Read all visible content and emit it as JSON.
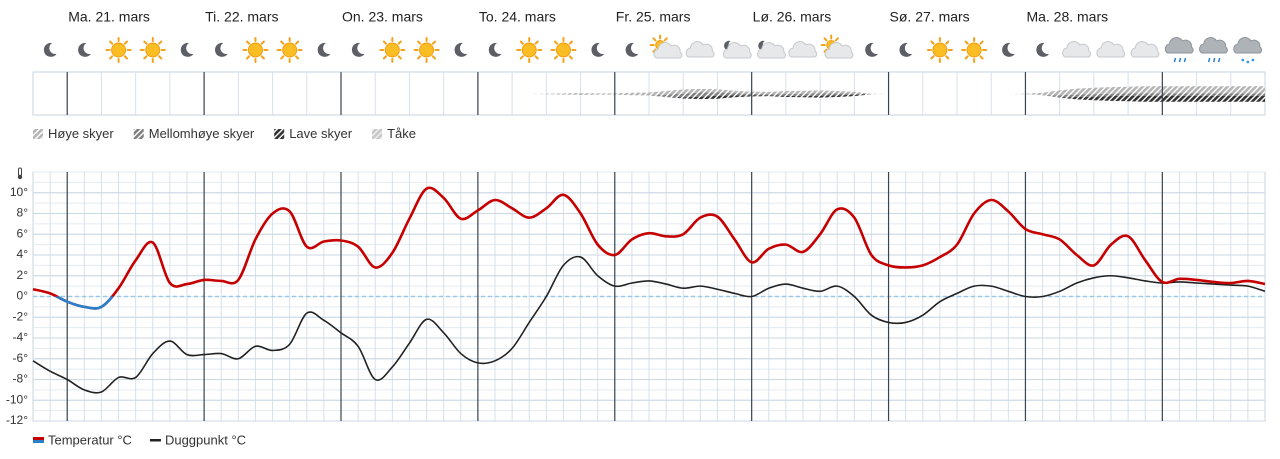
{
  "chart_data": [
    {
      "type": "area",
      "categories": [
        null,
        null,
        "Ma. 21. mars",
        null,
        null,
        null,
        null,
        null,
        null,
        null,
        "Ti. 22. mars",
        null,
        null,
        null,
        null,
        null,
        null,
        null,
        "On. 23. mars",
        null,
        null,
        null,
        null,
        null,
        null,
        null,
        "To. 24. mars",
        null,
        null,
        null,
        null,
        null,
        null,
        null,
        "Fr. 25. mars",
        null,
        null,
        null,
        null,
        null,
        null,
        null,
        "Lø. 26. mars",
        null,
        null,
        null,
        null,
        null,
        null,
        null,
        "Sø. 27. mars",
        null,
        null,
        null,
        null,
        null,
        null,
        null,
        "Ma. 28. mars",
        null,
        null,
        null,
        null,
        null,
        null,
        null,
        null,
        null,
        null,
        null,
        null,
        null,
        null
      ],
      "series": [
        {
          "name": "Høye skyer",
          "color": "#b4b4b4",
          "values": [
            0,
            0,
            0,
            0,
            0,
            0,
            0,
            0,
            0,
            0,
            0,
            0,
            0,
            0,
            0,
            0,
            0,
            0,
            0,
            0,
            0,
            0,
            0,
            0,
            0,
            0,
            0,
            0,
            0,
            0,
            5,
            10,
            15,
            10,
            10,
            20,
            25,
            30,
            35,
            30,
            25,
            20,
            20,
            20,
            25,
            25,
            25,
            20,
            15,
            5,
            0,
            0,
            0,
            0,
            0,
            0,
            0,
            0,
            5,
            20,
            40,
            50,
            55,
            55,
            55,
            60,
            60,
            60,
            60,
            60,
            60,
            60,
            60
          ]
        },
        {
          "name": "Mellomhøye skyer",
          "color": "#808080",
          "values": [
            0,
            0,
            0,
            0,
            0,
            0,
            0,
            0,
            0,
            0,
            0,
            0,
            0,
            0,
            0,
            0,
            0,
            0,
            0,
            0,
            0,
            0,
            0,
            0,
            0,
            0,
            0,
            0,
            0,
            0,
            0,
            0,
            0,
            0,
            0,
            0,
            0,
            20,
            30,
            35,
            30,
            20,
            10,
            10,
            15,
            20,
            20,
            15,
            10,
            0,
            0,
            0,
            0,
            0,
            0,
            0,
            0,
            0,
            0,
            0,
            20,
            20,
            20,
            20,
            20,
            20,
            20,
            20,
            20,
            20,
            20,
            20,
            20
          ]
        },
        {
          "name": "Lave skyer",
          "color": "#333333",
          "values": [
            0,
            0,
            0,
            0,
            0,
            0,
            0,
            0,
            0,
            0,
            0,
            0,
            0,
            0,
            0,
            0,
            0,
            0,
            0,
            0,
            0,
            0,
            0,
            0,
            0,
            0,
            0,
            0,
            0,
            0,
            0,
            0,
            0,
            0,
            0,
            0,
            0,
            0,
            10,
            20,
            25,
            15,
            10,
            5,
            10,
            10,
            15,
            15,
            10,
            0,
            0,
            0,
            0,
            0,
            0,
            0,
            0,
            0,
            0,
            0,
            0,
            20,
            30,
            40,
            45,
            50,
            50,
            50,
            50,
            50,
            50,
            50,
            50
          ]
        },
        {
          "name": "Tåke",
          "color": "#c8c8c8",
          "values": [
            0,
            0,
            0,
            0,
            0,
            0,
            0,
            0,
            0,
            0,
            0,
            0,
            0,
            0,
            0,
            0,
            0,
            0,
            0,
            0,
            0,
            0,
            0,
            0,
            0,
            0,
            0,
            0,
            0,
            0,
            0,
            0,
            0,
            0,
            0,
            0,
            0,
            0,
            0,
            0,
            0,
            0,
            0,
            0,
            0,
            0,
            0,
            0,
            0,
            0,
            0,
            0,
            0,
            0,
            0,
            0,
            0,
            0,
            0,
            0,
            0,
            0,
            0,
            0,
            0,
            0,
            0,
            0,
            0,
            0,
            0,
            0,
            0
          ]
        }
      ]
    },
    {
      "type": "line",
      "series": [
        {
          "name": "Temperatur °C",
          "color": "#c60000",
          "negative_color": "#2a7fcb",
          "values": [
            0.7,
            0.3,
            -0.5,
            -1.0,
            -1.0,
            0.8,
            3.5,
            5.2,
            1.3,
            1.2,
            1.6,
            1.5,
            1.6,
            5.5,
            8,
            8.2,
            4.8,
            5.3,
            5.4,
            4.8,
            2.8,
            4.2,
            7.5,
            10.4,
            9.5,
            7.5,
            8.3,
            9.3,
            8.5,
            7.6,
            8.5,
            9.8,
            8,
            5,
            4,
            5.5,
            6.1,
            5.8,
            6,
            7.6,
            7.7,
            5.5,
            3.3,
            4.6,
            5,
            4.3,
            6,
            8.4,
            7.6,
            4,
            3,
            2.8,
            3,
            3.8,
            5,
            8,
            9.3,
            8.2,
            6.5,
            6,
            5.5,
            4,
            3,
            5,
            5.8,
            3.5,
            1.4,
            1.7,
            1.6,
            1.4,
            1.3,
            1.5,
            1.2
          ]
        },
        {
          "name": "Duggpunkt °C",
          "color": "#222222",
          "values": [
            -6.2,
            -7.2,
            -8,
            -9,
            -9.2,
            -7.8,
            -7.8,
            -5.5,
            -4.3,
            -5.6,
            -5.6,
            -5.5,
            -6,
            -4.8,
            -5.2,
            -4.6,
            -1.6,
            -2.3,
            -3.5,
            -4.8,
            -8,
            -6.8,
            -4.5,
            -2.2,
            -3.5,
            -5.5,
            -6.4,
            -6.2,
            -5,
            -2.5,
            0,
            3,
            3.8,
            2,
            1,
            1.3,
            1.5,
            1.2,
            0.8,
            1,
            0.7,
            0.3,
            0,
            0.8,
            1.2,
            0.8,
            0.5,
            1,
            0,
            -1.8,
            -2.5,
            -2.5,
            -1.8,
            -0.5,
            0.3,
            1,
            1,
            0.5,
            0,
            0,
            0.5,
            1.3,
            1.8,
            2,
            1.8,
            1.5,
            1.3,
            1.4,
            1.3,
            1.2,
            1.1,
            1,
            0.5
          ]
        }
      ],
      "ylim": [
        -12,
        12
      ],
      "yticks": [
        {
          "value": 10,
          "label": "10°"
        },
        {
          "value": 8,
          "label": "8°"
        },
        {
          "value": 6,
          "label": "6°"
        },
        {
          "value": 4,
          "label": "4°"
        },
        {
          "value": 2,
          "label": "2°"
        },
        {
          "value": 0,
          "label": "0°"
        },
        {
          "value": -2,
          "label": "-2°"
        },
        {
          "value": -4,
          "label": "-4°"
        },
        {
          "value": -6,
          "label": "-6°"
        },
        {
          "value": -8,
          "label": "-8°"
        },
        {
          "value": -10,
          "label": "-10°"
        },
        {
          "value": -12,
          "label": "-12°"
        }
      ],
      "grid": true
    }
  ]
}
